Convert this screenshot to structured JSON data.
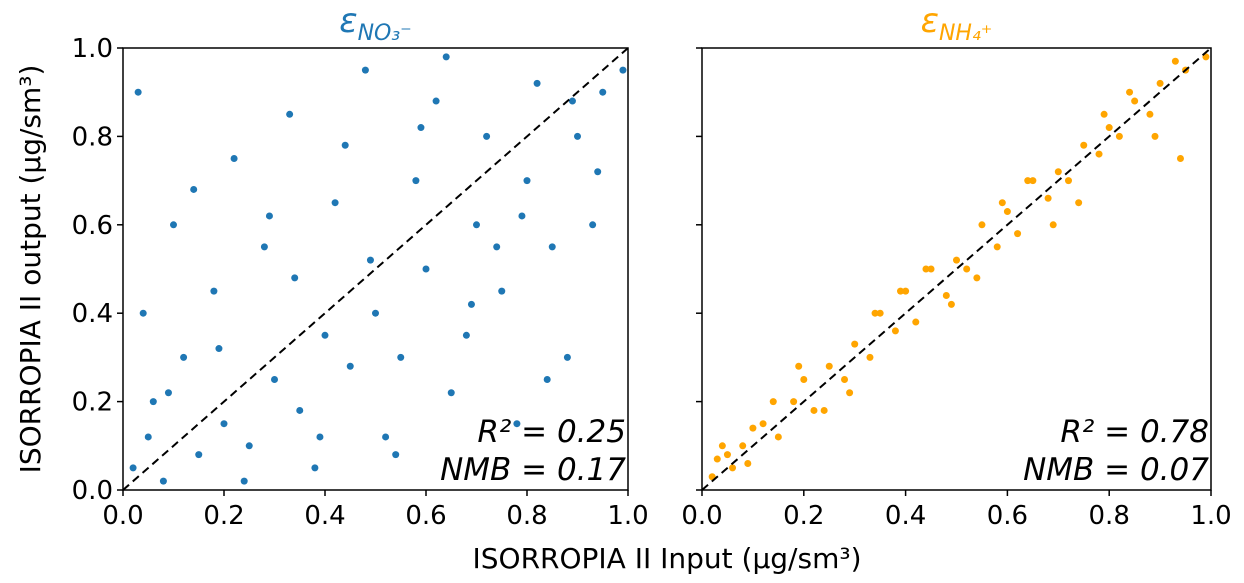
{
  "chart_data": [
    {
      "type": "scatter",
      "title": "ε",
      "title_subscript": "NO₃⁻",
      "color": "#1f77b4",
      "ylabel": "ISORROPIA II output (μg/sm³)",
      "xlabel": "ISORROPIA II Input (μg/sm³)",
      "annotations": [
        "R² = 0.25",
        "NMB = 0.17"
      ],
      "xlim": [
        0,
        1
      ],
      "ylim": [
        0,
        1
      ],
      "xticks": [
        {
          "value": 0,
          "label": "0.0"
        },
        {
          "value": 0.2,
          "label": "0.2"
        },
        {
          "value": 0.4,
          "label": "0.4"
        },
        {
          "value": 0.6,
          "label": "0.6"
        },
        {
          "value": 0.8,
          "label": "0.8"
        },
        {
          "value": 1,
          "label": "1.0"
        }
      ],
      "yticks": [
        {
          "value": 0,
          "label": "0.0"
        },
        {
          "value": 0.2,
          "label": "0.2"
        },
        {
          "value": 0.4,
          "label": "0.4"
        },
        {
          "value": 0.6,
          "label": "0.6"
        },
        {
          "value": 0.8,
          "label": "0.8"
        },
        {
          "value": 1,
          "label": "1.0"
        }
      ],
      "x": [
        0.02,
        0.05,
        0.08,
        0.03,
        0.12,
        0.15,
        0.1,
        0.06,
        0.2,
        0.18,
        0.25,
        0.22,
        0.3,
        0.28,
        0.35,
        0.33,
        0.4,
        0.38,
        0.45,
        0.42,
        0.5,
        0.48,
        0.55,
        0.52,
        0.6,
        0.58,
        0.65,
        0.62,
        0.7,
        0.68,
        0.75,
        0.72,
        0.8,
        0.78,
        0.85,
        0.82,
        0.9,
        0.88,
        0.95,
        0.93,
        0.04,
        0.14,
        0.24,
        0.34,
        0.44,
        0.54,
        0.64,
        0.74,
        0.84,
        0.94,
        0.09,
        0.19,
        0.29,
        0.39,
        0.49,
        0.59,
        0.69,
        0.79,
        0.89,
        0.99
      ],
      "values": [
        0.05,
        0.12,
        0.02,
        0.9,
        0.3,
        0.08,
        0.6,
        0.2,
        0.15,
        0.45,
        0.1,
        0.75,
        0.25,
        0.55,
        0.18,
        0.85,
        0.35,
        0.05,
        0.28,
        0.65,
        0.4,
        0.95,
        0.3,
        0.12,
        0.5,
        0.7,
        0.22,
        0.88,
        0.6,
        0.35,
        0.45,
        0.8,
        0.7,
        0.15,
        0.55,
        0.92,
        0.8,
        0.3,
        0.9,
        0.6,
        0.4,
        0.68,
        0.02,
        0.48,
        0.78,
        0.08,
        0.98,
        0.55,
        0.25,
        0.72,
        0.22,
        0.32,
        0.62,
        0.12,
        0.52,
        0.82,
        0.42,
        0.62,
        0.88,
        0.95
      ]
    },
    {
      "type": "scatter",
      "title": "ε",
      "title_subscript": "NH₄⁺",
      "color": "#ffa500",
      "annotations": [
        "R² = 0.78",
        "NMB = 0.07"
      ],
      "xlim": [
        0,
        1
      ],
      "ylim": [
        0,
        1
      ],
      "xticks": [
        {
          "value": 0,
          "label": "0.0"
        },
        {
          "value": 0.2,
          "label": "0.2"
        },
        {
          "value": 0.4,
          "label": "0.4"
        },
        {
          "value": 0.6,
          "label": "0.6"
        },
        {
          "value": 0.8,
          "label": "0.8"
        },
        {
          "value": 1,
          "label": "1.0"
        }
      ],
      "yticks": [
        0,
        0.2,
        0.4,
        0.6,
        0.8,
        1
      ],
      "x": [
        0.02,
        0.05,
        0.08,
        0.03,
        0.12,
        0.15,
        0.1,
        0.06,
        0.2,
        0.18,
        0.25,
        0.22,
        0.3,
        0.28,
        0.35,
        0.33,
        0.4,
        0.38,
        0.45,
        0.42,
        0.5,
        0.48,
        0.55,
        0.52,
        0.6,
        0.58,
        0.65,
        0.62,
        0.7,
        0.68,
        0.75,
        0.72,
        0.8,
        0.78,
        0.85,
        0.82,
        0.9,
        0.88,
        0.95,
        0.93,
        0.04,
        0.14,
        0.24,
        0.34,
        0.44,
        0.54,
        0.64,
        0.74,
        0.84,
        0.94,
        0.09,
        0.19,
        0.29,
        0.39,
        0.49,
        0.59,
        0.69,
        0.79,
        0.89,
        0.99
      ],
      "values": [
        0.03,
        0.08,
        0.1,
        0.07,
        0.15,
        0.12,
        0.14,
        0.05,
        0.25,
        0.2,
        0.28,
        0.18,
        0.33,
        0.25,
        0.4,
        0.3,
        0.45,
        0.36,
        0.5,
        0.38,
        0.52,
        0.44,
        0.6,
        0.5,
        0.63,
        0.55,
        0.7,
        0.58,
        0.72,
        0.66,
        0.78,
        0.7,
        0.82,
        0.76,
        0.88,
        0.8,
        0.92,
        0.85,
        0.95,
        0.97,
        0.1,
        0.2,
        0.18,
        0.4,
        0.5,
        0.48,
        0.7,
        0.65,
        0.9,
        0.75,
        0.06,
        0.28,
        0.22,
        0.45,
        0.42,
        0.65,
        0.6,
        0.85,
        0.8,
        0.98
      ]
    }
  ]
}
